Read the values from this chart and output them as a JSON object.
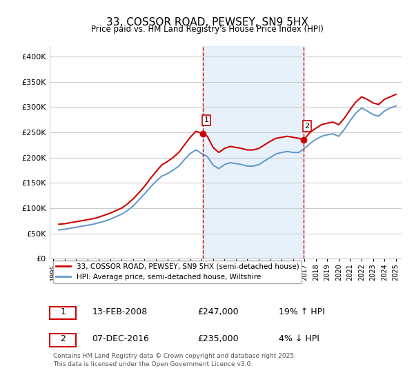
{
  "title": "33, COSSOR ROAD, PEWSEY, SN9 5HX",
  "subtitle": "Price paid vs. HM Land Registry's House Price Index (HPI)",
  "ylabel_ticks": [
    "£0",
    "£50K",
    "£100K",
    "£150K",
    "£200K",
    "£250K",
    "£300K",
    "£350K",
    "£400K"
  ],
  "ytick_values": [
    0,
    50000,
    100000,
    150000,
    200000,
    250000,
    300000,
    350000,
    400000
  ],
  "ylim": [
    0,
    420000
  ],
  "xlim_start": 1995.0,
  "xlim_end": 2025.5,
  "red_line_color": "#cc0000",
  "blue_line_color": "#6699cc",
  "shaded_color": "#d0e4f7",
  "grid_color": "#cccccc",
  "background_color": "#ffffff",
  "sale1_x": 2008.1,
  "sale1_y": 247000,
  "sale1_label": "1",
  "sale2_x": 2016.93,
  "sale2_y": 235000,
  "sale2_label": "2",
  "legend_red": "33, COSSOR ROAD, PEWSEY, SN9 5HX (semi-detached house)",
  "legend_blue": "HPI: Average price, semi-detached house, Wiltshire",
  "table_row1": [
    "1",
    "13-FEB-2008",
    "£247,000",
    "19% ↑ HPI"
  ],
  "table_row2": [
    "2",
    "07-DEC-2016",
    "£235,000",
    "4% ↓ HPI"
  ],
  "footer": "Contains HM Land Registry data © Crown copyright and database right 2025.\nThis data is licensed under the Open Government Licence v3.0.",
  "hpi_red_data_x": [
    1995.5,
    1996.0,
    1996.5,
    1997.0,
    1997.5,
    1998.0,
    1998.5,
    1999.0,
    1999.5,
    2000.0,
    2000.5,
    2001.0,
    2001.5,
    2002.0,
    2002.5,
    2003.0,
    2003.5,
    2004.0,
    2004.5,
    2005.0,
    2005.5,
    2006.0,
    2006.5,
    2007.0,
    2007.5,
    2008.1,
    2008.5,
    2009.0,
    2009.5,
    2010.0,
    2010.5,
    2011.0,
    2011.5,
    2012.0,
    2012.5,
    2013.0,
    2013.5,
    2014.0,
    2014.5,
    2015.0,
    2015.5,
    2016.0,
    2016.5,
    2016.93,
    2017.5,
    2018.0,
    2018.5,
    2019.0,
    2019.5,
    2020.0,
    2020.5,
    2021.0,
    2021.5,
    2022.0,
    2022.5,
    2023.0,
    2023.5,
    2024.0,
    2024.5,
    2025.0
  ],
  "hpi_red_data_y": [
    68000,
    69000,
    71000,
    73000,
    75000,
    77000,
    79000,
    82000,
    86000,
    90000,
    95000,
    100000,
    108000,
    118000,
    130000,
    143000,
    158000,
    172000,
    185000,
    192000,
    200000,
    210000,
    225000,
    240000,
    252000,
    247000,
    242000,
    220000,
    210000,
    218000,
    222000,
    220000,
    218000,
    215000,
    215000,
    218000,
    225000,
    232000,
    238000,
    240000,
    242000,
    240000,
    238000,
    235000,
    250000,
    258000,
    265000,
    268000,
    270000,
    265000,
    278000,
    295000,
    310000,
    320000,
    315000,
    308000,
    305000,
    315000,
    320000,
    325000
  ],
  "hpi_blue_data_x": [
    1995.5,
    1996.0,
    1996.5,
    1997.0,
    1997.5,
    1998.0,
    1998.5,
    1999.0,
    1999.5,
    2000.0,
    2000.5,
    2001.0,
    2001.5,
    2002.0,
    2002.5,
    2003.0,
    2003.5,
    2004.0,
    2004.5,
    2005.0,
    2005.5,
    2006.0,
    2006.5,
    2007.0,
    2007.5,
    2008.0,
    2008.5,
    2009.0,
    2009.5,
    2010.0,
    2010.5,
    2011.0,
    2011.5,
    2012.0,
    2012.5,
    2013.0,
    2013.5,
    2014.0,
    2014.5,
    2015.0,
    2015.5,
    2016.0,
    2016.5,
    2017.0,
    2017.5,
    2018.0,
    2018.5,
    2019.0,
    2019.5,
    2020.0,
    2020.5,
    2021.0,
    2021.5,
    2022.0,
    2022.5,
    2023.0,
    2023.5,
    2024.0,
    2024.5,
    2025.0
  ],
  "hpi_blue_data_y": [
    57000,
    58000,
    60000,
    62000,
    64000,
    66000,
    68000,
    71000,
    74000,
    78000,
    83000,
    88000,
    95000,
    104000,
    116000,
    128000,
    141000,
    153000,
    163000,
    168000,
    175000,
    183000,
    196000,
    208000,
    215000,
    208000,
    202000,
    185000,
    178000,
    186000,
    190000,
    188000,
    186000,
    183000,
    183000,
    186000,
    193000,
    200000,
    207000,
    210000,
    212000,
    210000,
    210000,
    218000,
    228000,
    236000,
    242000,
    245000,
    247000,
    242000,
    256000,
    273000,
    288000,
    298000,
    292000,
    285000,
    282000,
    292000,
    298000,
    302000
  ]
}
